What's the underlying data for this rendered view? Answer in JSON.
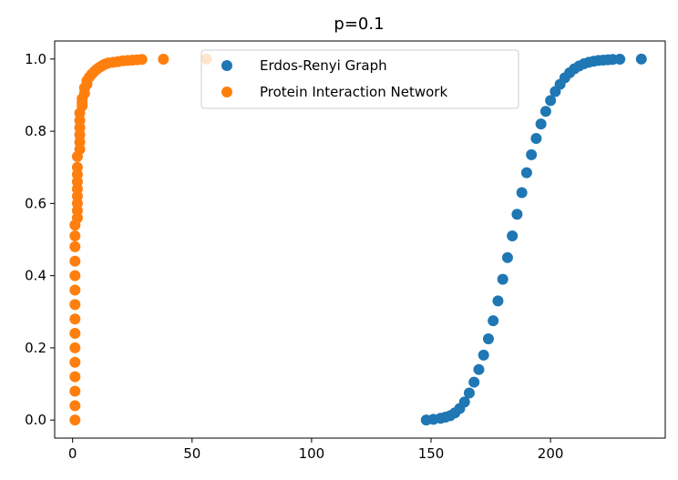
{
  "chart_data": {
    "type": "scatter",
    "title": "p=0.1",
    "xlabel": "",
    "ylabel": "",
    "xlim": [
      -7.5,
      248
    ],
    "ylim": [
      -0.05,
      1.05
    ],
    "x_ticks": [
      0,
      50,
      100,
      150,
      200
    ],
    "x_tick_labels": [
      "0",
      "50",
      "100",
      "150",
      "200"
    ],
    "y_ticks": [
      0.0,
      0.2,
      0.4,
      0.6,
      0.8,
      1.0
    ],
    "y_tick_labels": [
      "0.0",
      "0.2",
      "0.4",
      "0.6",
      "0.8",
      "1.0"
    ],
    "grid": false,
    "legend_position": "upper center",
    "series": [
      {
        "name": "Erdos-Renyi Graph",
        "color": "#1f77b4",
        "x": [
          148,
          151,
          154,
          156,
          158,
          160,
          162,
          164,
          166,
          168,
          170,
          172,
          174,
          176,
          178,
          180,
          182,
          184,
          186,
          188,
          190,
          192,
          194,
          196,
          198,
          200,
          202,
          204,
          206,
          208,
          210,
          212,
          214,
          216,
          218,
          220,
          222,
          224,
          226,
          229,
          238
        ],
        "y": [
          0.0,
          0.002,
          0.005,
          0.008,
          0.012,
          0.02,
          0.032,
          0.05,
          0.075,
          0.105,
          0.14,
          0.18,
          0.225,
          0.275,
          0.33,
          0.39,
          0.45,
          0.51,
          0.57,
          0.63,
          0.685,
          0.735,
          0.78,
          0.82,
          0.855,
          0.885,
          0.91,
          0.93,
          0.948,
          0.962,
          0.973,
          0.981,
          0.987,
          0.991,
          0.994,
          0.996,
          0.997,
          0.998,
          0.999,
          0.9995,
          1.0
        ]
      },
      {
        "name": "Protein Interaction Network",
        "color": "#ff7f0e",
        "x": [
          1,
          1,
          1,
          1,
          1,
          1,
          1,
          1,
          1,
          1,
          1,
          1,
          1,
          1,
          1,
          2,
          2,
          2,
          2,
          2,
          2,
          2,
          2,
          2,
          3,
          3,
          3,
          3,
          3,
          3,
          4,
          4,
          4,
          5,
          5,
          6,
          6,
          7,
          8,
          9,
          10,
          11,
          12,
          13,
          14,
          15,
          17,
          19,
          21,
          23,
          25,
          27,
          29,
          38,
          56
        ],
        "y": [
          0.0,
          0.04,
          0.08,
          0.12,
          0.16,
          0.2,
          0.24,
          0.28,
          0.32,
          0.36,
          0.4,
          0.44,
          0.48,
          0.51,
          0.54,
          0.56,
          0.58,
          0.6,
          0.62,
          0.64,
          0.66,
          0.68,
          0.7,
          0.73,
          0.75,
          0.77,
          0.79,
          0.81,
          0.83,
          0.85,
          0.87,
          0.88,
          0.89,
          0.905,
          0.92,
          0.93,
          0.94,
          0.95,
          0.958,
          0.965,
          0.971,
          0.976,
          0.98,
          0.984,
          0.987,
          0.989,
          0.991,
          0.993,
          0.995,
          0.996,
          0.997,
          0.998,
          0.999,
          0.9995,
          1.0
        ]
      }
    ]
  }
}
